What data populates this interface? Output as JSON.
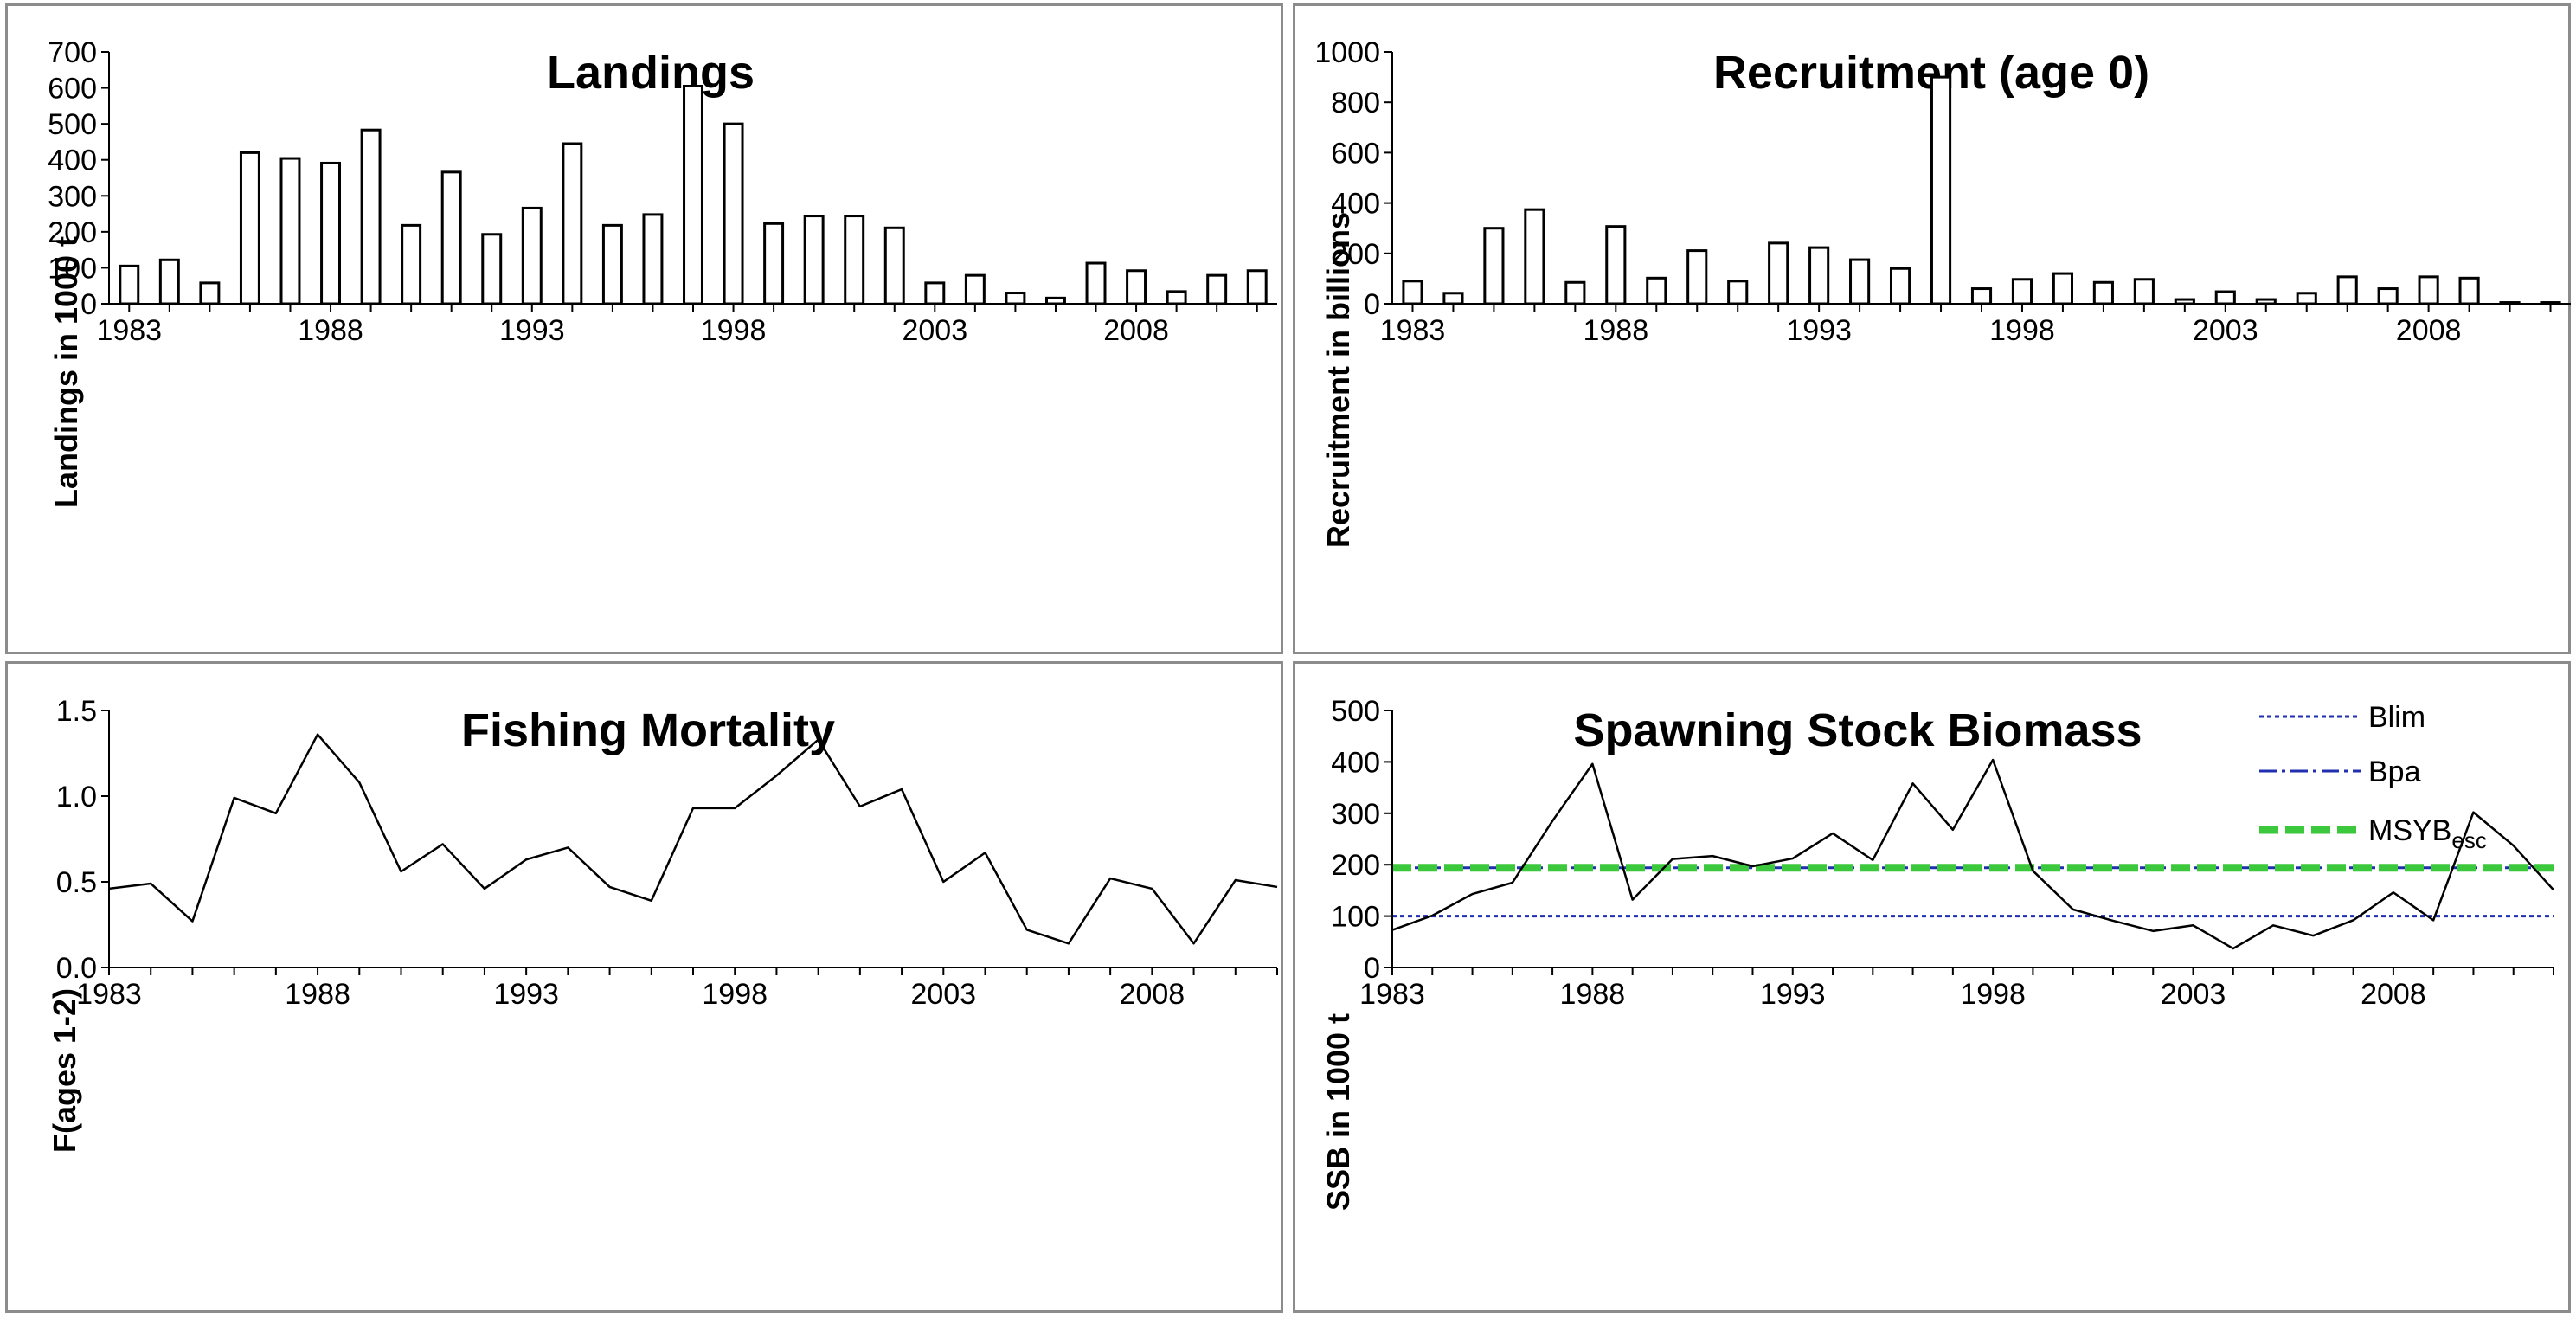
{
  "chart_data": [
    {
      "type": "bar",
      "title": "Landings",
      "ylabel": "Landings in 1000 t",
      "ylim": [
        0,
        700
      ],
      "yticks": [
        "0",
        "100",
        "200",
        "300",
        "400",
        "500",
        "600",
        "700"
      ],
      "xticks": [
        "1983",
        "1988",
        "1993",
        "1998",
        "2003",
        "2008"
      ],
      "x": [
        1983,
        1984,
        1985,
        1986,
        1987,
        1988,
        1989,
        1990,
        1991,
        1992,
        1993,
        1994,
        1995,
        1996,
        1997,
        1998,
        1999,
        2000,
        2001,
        2002,
        2003,
        2004,
        2005,
        2006,
        2007,
        2008,
        2009,
        2010,
        2011
      ],
      "values": [
        105,
        122,
        58,
        420,
        404,
        391,
        483,
        218,
        366,
        193,
        266,
        445,
        218,
        248,
        605,
        500,
        223,
        244,
        244,
        211,
        58,
        79,
        30,
        16,
        113,
        92,
        34,
        79,
        92
      ],
      "color": "#000000"
    },
    {
      "type": "bar",
      "title": "Recruitment (age 0)",
      "ylabel": "Recruitment in billions",
      "ylim": [
        0,
        1000
      ],
      "yticks": [
        "0",
        "200",
        "400",
        "600",
        "800",
        "1000"
      ],
      "xticks": [
        "1983",
        "1988",
        "1993",
        "1998",
        "2003",
        "2008"
      ],
      "x": [
        1983,
        1984,
        1985,
        1986,
        1987,
        1988,
        1989,
        1990,
        1991,
        1992,
        1993,
        1994,
        1995,
        1996,
        1997,
        1998,
        1999,
        2000,
        2001,
        2002,
        2003,
        2004,
        2005,
        2006,
        2007,
        2008,
        2009,
        2010,
        2011
      ],
      "values": [
        90,
        42,
        300,
        374,
        85,
        307,
        102,
        211,
        90,
        241,
        223,
        175,
        140,
        900,
        60,
        97,
        120,
        85,
        97,
        17,
        48,
        17,
        42,
        107,
        60,
        107,
        102,
        5,
        5
      ],
      "color": "#000000"
    },
    {
      "type": "line",
      "title": "Fishing Mortality",
      "ylabel": "F(ages 1-2)",
      "ylim": [
        0,
        1.5
      ],
      "yticks": [
        "0.0",
        "0.5",
        "1.0",
        "1.5"
      ],
      "xticks": [
        "1983",
        "1988",
        "1993",
        "1998",
        "2003",
        "2008"
      ],
      "x": [
        1983,
        1984,
        1985,
        1986,
        1987,
        1988,
        1989,
        1990,
        1991,
        1992,
        1993,
        1994,
        1995,
        1996,
        1997,
        1998,
        1999,
        2000,
        2001,
        2002,
        2003,
        2004,
        2005,
        2006,
        2007,
        2008,
        2009,
        2010,
        2011
      ],
      "values": [
        0.46,
        0.49,
        0.27,
        0.99,
        0.9,
        1.36,
        1.08,
        0.56,
        0.72,
        0.46,
        0.63,
        0.7,
        0.47,
        0.39,
        0.93,
        0.93,
        1.12,
        1.33,
        0.94,
        1.04,
        0.5,
        0.67,
        0.22,
        0.14,
        0.52,
        0.46,
        0.14,
        0.51,
        0.47
      ],
      "color": "#000000"
    },
    {
      "type": "line",
      "title": "Spawning Stock Biomass",
      "ylabel": "SSB in 1000 t",
      "ylim": [
        0,
        500
      ],
      "yticks": [
        "0",
        "100",
        "200",
        "300",
        "400",
        "500"
      ],
      "xticks": [
        "1983",
        "1988",
        "1993",
        "1998",
        "2003",
        "2008"
      ],
      "x": [
        1983,
        1984,
        1985,
        1986,
        1987,
        1988,
        1989,
        1990,
        1991,
        1992,
        1993,
        1994,
        1995,
        1996,
        1997,
        1998,
        1999,
        2000,
        2001,
        2002,
        2003,
        2004,
        2005,
        2006,
        2007,
        2008,
        2009,
        2010,
        2011,
        2012
      ],
      "values": [
        73,
        101,
        143,
        165,
        285,
        396,
        132,
        211,
        217,
        197,
        212,
        261,
        209,
        358,
        268,
        404,
        188,
        113,
        91,
        71,
        82,
        37,
        82,
        62,
        92,
        146,
        92,
        302,
        237,
        151
      ],
      "color": "#000000",
      "reference_lines": [
        {
          "name": "Blim",
          "value": 100,
          "color": "#1f2fb0",
          "style": "dotted"
        },
        {
          "name": "Bpa",
          "value": 194,
          "color": "#1f2fb0",
          "style": "dash-dot"
        },
        {
          "name": "MSYB",
          "sub": "esc",
          "value": 194,
          "color": "#3cc83c",
          "style": "thick-dashed"
        }
      ],
      "legend": "top-right"
    }
  ]
}
